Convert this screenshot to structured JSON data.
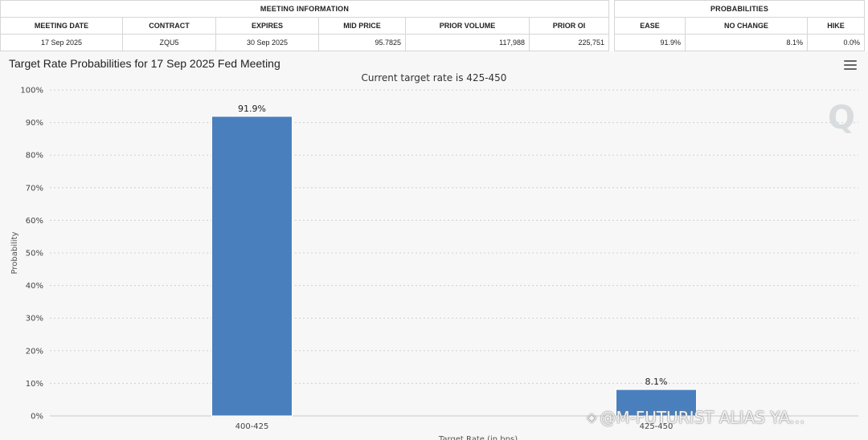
{
  "meeting_info": {
    "title": "MEETING INFORMATION",
    "headers": [
      "MEETING DATE",
      "CONTRACT",
      "EXPIRES",
      "MID PRICE",
      "PRIOR VOLUME",
      "PRIOR OI"
    ],
    "values": [
      "17 Sep 2025",
      "ZQU5",
      "30 Sep 2025",
      "95.7825",
      "117,988",
      "225,751"
    ]
  },
  "probabilities": {
    "title": "PROBABILITIES",
    "headers": [
      "EASE",
      "NO CHANGE",
      "HIKE"
    ],
    "values": [
      "91.9%",
      "8.1%",
      "0.0%"
    ]
  },
  "watermark": {
    "text": "@M-FUTURIST ALIAS YA...",
    "icon": "diamond-logo-icon"
  },
  "logo": {
    "text": "Q"
  },
  "colors": {
    "bar": "#4a7fbd",
    "panel_bg": "#f7f7f7",
    "grid": "#d0d0d0"
  },
  "chart_data": {
    "type": "bar",
    "title": "Target Rate Probabilities for 17 Sep 2025 Fed Meeting",
    "subtitle": "Current target rate is 425-450",
    "xlabel": "Target Rate (in bps)",
    "ylabel": "Probability",
    "categories": [
      "400-425",
      "425-450"
    ],
    "values": [
      91.9,
      8.1
    ],
    "data_labels": [
      "91.9%",
      "8.1%"
    ],
    "ylim": [
      0,
      100
    ],
    "yticks": [
      "0%",
      "10%",
      "20%",
      "30%",
      "40%",
      "50%",
      "60%",
      "70%",
      "80%",
      "90%",
      "100%"
    ],
    "grid": true,
    "legend": "none"
  }
}
